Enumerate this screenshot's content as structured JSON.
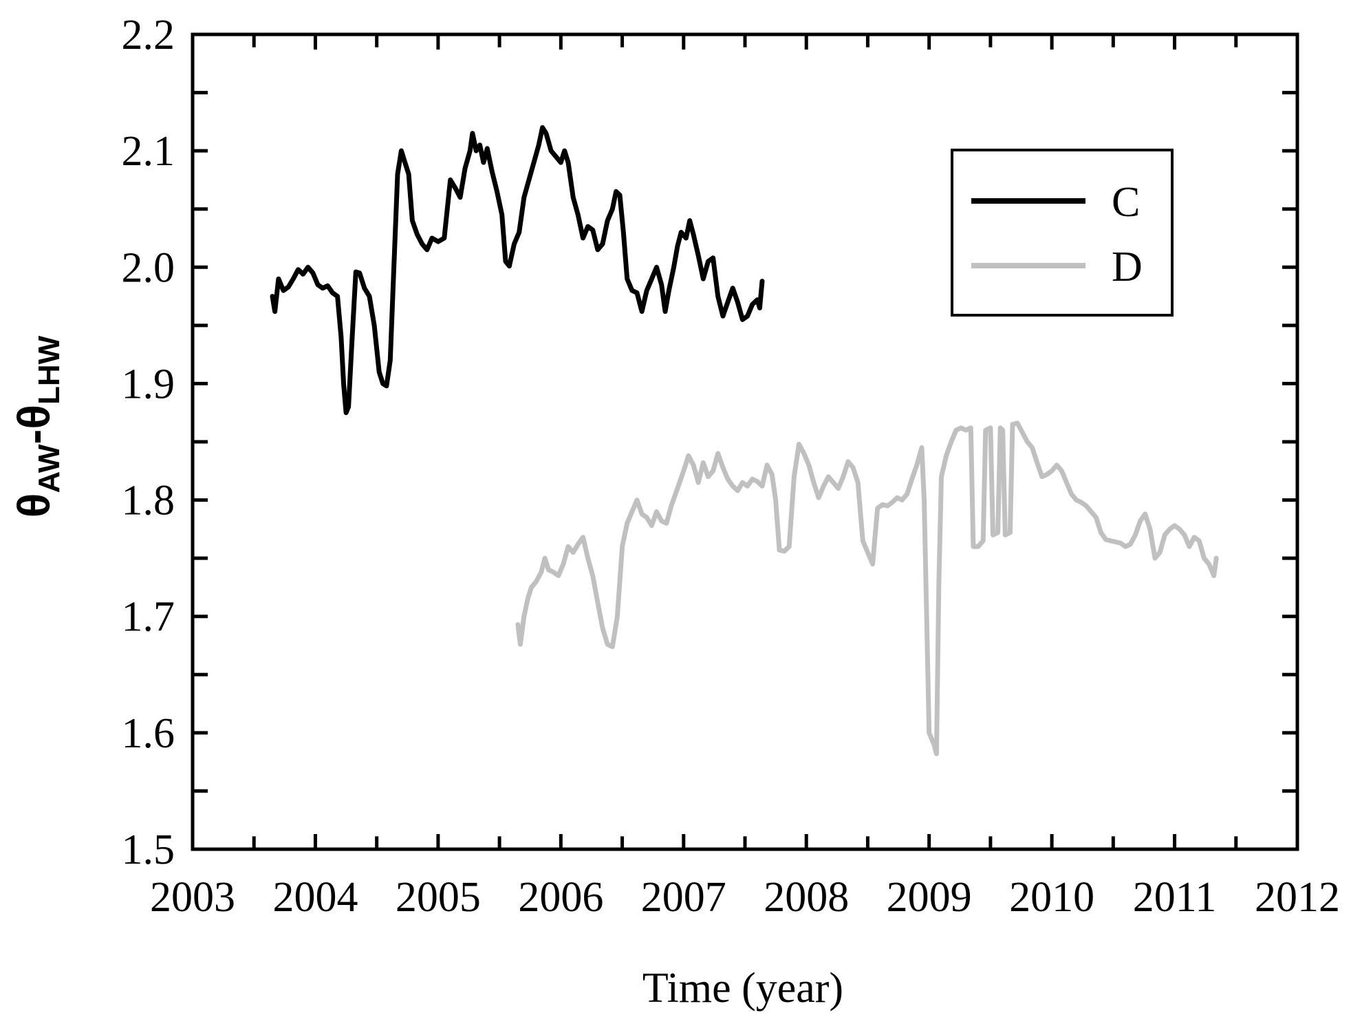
{
  "chart_data": {
    "type": "line",
    "xlabel": "Time (year)",
    "ylabel": {
      "main1": "θ",
      "sub1": "AW",
      "dash": "-",
      "main2": "θ",
      "sub2": "LHW"
    },
    "xlim": [
      2003,
      2012
    ],
    "ylim": [
      1.5,
      2.2
    ],
    "x_ticks": [
      "2003",
      "2004",
      "2005",
      "2006",
      "2007",
      "2008",
      "2009",
      "2010",
      "2011",
      "2012"
    ],
    "y_ticks": [
      "1.5",
      "1.6",
      "1.7",
      "1.8",
      "1.9",
      "2.0",
      "2.1",
      "2.2"
    ],
    "legend_position": "top-right",
    "grid": false,
    "series": [
      {
        "name": "C",
        "color": "#000000",
        "points": [
          [
            2003.65,
            1.975
          ],
          [
            2003.67,
            1.962
          ],
          [
            2003.7,
            1.99
          ],
          [
            2003.74,
            1.98
          ],
          [
            2003.78,
            1.983
          ],
          [
            2003.82,
            1.99
          ],
          [
            2003.86,
            1.998
          ],
          [
            2003.9,
            1.994
          ],
          [
            2003.94,
            2.0
          ],
          [
            2003.98,
            1.995
          ],
          [
            2004.02,
            1.985
          ],
          [
            2004.06,
            1.982
          ],
          [
            2004.1,
            1.984
          ],
          [
            2004.14,
            1.978
          ],
          [
            2004.18,
            1.975
          ],
          [
            2004.21,
            1.94
          ],
          [
            2004.23,
            1.9
          ],
          [
            2004.25,
            1.875
          ],
          [
            2004.27,
            1.88
          ],
          [
            2004.3,
            1.94
          ],
          [
            2004.33,
            1.996
          ],
          [
            2004.36,
            1.995
          ],
          [
            2004.4,
            1.982
          ],
          [
            2004.44,
            1.975
          ],
          [
            2004.48,
            1.95
          ],
          [
            2004.52,
            1.91
          ],
          [
            2004.55,
            1.9
          ],
          [
            2004.58,
            1.898
          ],
          [
            2004.61,
            1.92
          ],
          [
            2004.64,
            2.0
          ],
          [
            2004.67,
            2.08
          ],
          [
            2004.7,
            2.1
          ],
          [
            2004.73,
            2.09
          ],
          [
            2004.76,
            2.08
          ],
          [
            2004.79,
            2.04
          ],
          [
            2004.83,
            2.028
          ],
          [
            2004.87,
            2.02
          ],
          [
            2004.91,
            2.015
          ],
          [
            2004.95,
            2.025
          ],
          [
            2005.0,
            2.022
          ],
          [
            2005.05,
            2.025
          ],
          [
            2005.1,
            2.075
          ],
          [
            2005.14,
            2.068
          ],
          [
            2005.18,
            2.06
          ],
          [
            2005.22,
            2.085
          ],
          [
            2005.26,
            2.1
          ],
          [
            2005.28,
            2.115
          ],
          [
            2005.31,
            2.1
          ],
          [
            2005.34,
            2.105
          ],
          [
            2005.37,
            2.09
          ],
          [
            2005.4,
            2.102
          ],
          [
            2005.44,
            2.082
          ],
          [
            2005.48,
            2.065
          ],
          [
            2005.52,
            2.045
          ],
          [
            2005.55,
            2.005
          ],
          [
            2005.58,
            2.001
          ],
          [
            2005.62,
            2.02
          ],
          [
            2005.66,
            2.03
          ],
          [
            2005.7,
            2.06
          ],
          [
            2005.74,
            2.075
          ],
          [
            2005.78,
            2.09
          ],
          [
            2005.82,
            2.105
          ],
          [
            2005.85,
            2.12
          ],
          [
            2005.88,
            2.115
          ],
          [
            2005.92,
            2.1
          ],
          [
            2005.96,
            2.095
          ],
          [
            2006.0,
            2.09
          ],
          [
            2006.03,
            2.1
          ],
          [
            2006.06,
            2.09
          ],
          [
            2006.1,
            2.06
          ],
          [
            2006.14,
            2.045
          ],
          [
            2006.18,
            2.025
          ],
          [
            2006.22,
            2.035
          ],
          [
            2006.26,
            2.032
          ],
          [
            2006.3,
            2.015
          ],
          [
            2006.34,
            2.02
          ],
          [
            2006.38,
            2.04
          ],
          [
            2006.42,
            2.05
          ],
          [
            2006.45,
            2.065
          ],
          [
            2006.48,
            2.062
          ],
          [
            2006.51,
            2.03
          ],
          [
            2006.54,
            1.99
          ],
          [
            2006.58,
            1.98
          ],
          [
            2006.62,
            1.978
          ],
          [
            2006.66,
            1.962
          ],
          [
            2006.7,
            1.98
          ],
          [
            2006.74,
            1.99
          ],
          [
            2006.78,
            2.0
          ],
          [
            2006.82,
            1.985
          ],
          [
            2006.85,
            1.962
          ],
          [
            2006.88,
            1.98
          ],
          [
            2006.92,
            2.0
          ],
          [
            2006.95,
            2.018
          ],
          [
            2006.98,
            2.03
          ],
          [
            2007.02,
            2.025
          ],
          [
            2007.05,
            2.04
          ],
          [
            2007.08,
            2.028
          ],
          [
            2007.12,
            2.01
          ],
          [
            2007.16,
            1.99
          ],
          [
            2007.2,
            2.005
          ],
          [
            2007.24,
            2.008
          ],
          [
            2007.28,
            1.975
          ],
          [
            2007.32,
            1.958
          ],
          [
            2007.36,
            1.97
          ],
          [
            2007.4,
            1.982
          ],
          [
            2007.44,
            1.97
          ],
          [
            2007.48,
            1.955
          ],
          [
            2007.52,
            1.958
          ],
          [
            2007.56,
            1.968
          ],
          [
            2007.6,
            1.972
          ],
          [
            2007.62,
            1.965
          ],
          [
            2007.64,
            1.988
          ]
        ]
      },
      {
        "name": "D",
        "color": "#c0c0c0",
        "points": [
          [
            2005.65,
            1.693
          ],
          [
            2005.67,
            1.676
          ],
          [
            2005.7,
            1.7
          ],
          [
            2005.73,
            1.715
          ],
          [
            2005.76,
            1.725
          ],
          [
            2005.8,
            1.73
          ],
          [
            2005.84,
            1.738
          ],
          [
            2005.87,
            1.75
          ],
          [
            2005.9,
            1.74
          ],
          [
            2005.94,
            1.738
          ],
          [
            2005.98,
            1.735
          ],
          [
            2006.02,
            1.745
          ],
          [
            2006.06,
            1.76
          ],
          [
            2006.1,
            1.755
          ],
          [
            2006.14,
            1.762
          ],
          [
            2006.18,
            1.768
          ],
          [
            2006.22,
            1.75
          ],
          [
            2006.26,
            1.735
          ],
          [
            2006.3,
            1.712
          ],
          [
            2006.34,
            1.69
          ],
          [
            2006.38,
            1.676
          ],
          [
            2006.42,
            1.674
          ],
          [
            2006.46,
            1.7
          ],
          [
            2006.5,
            1.76
          ],
          [
            2006.54,
            1.78
          ],
          [
            2006.58,
            1.79
          ],
          [
            2006.62,
            1.8
          ],
          [
            2006.66,
            1.788
          ],
          [
            2006.7,
            1.785
          ],
          [
            2006.74,
            1.778
          ],
          [
            2006.78,
            1.79
          ],
          [
            2006.82,
            1.782
          ],
          [
            2006.86,
            1.78
          ],
          [
            2006.9,
            1.795
          ],
          [
            2006.95,
            1.81
          ],
          [
            2007.0,
            1.825
          ],
          [
            2007.04,
            1.838
          ],
          [
            2007.08,
            1.83
          ],
          [
            2007.12,
            1.815
          ],
          [
            2007.16,
            1.832
          ],
          [
            2007.2,
            1.82
          ],
          [
            2007.24,
            1.825
          ],
          [
            2007.28,
            1.84
          ],
          [
            2007.32,
            1.828
          ],
          [
            2007.36,
            1.818
          ],
          [
            2007.4,
            1.812
          ],
          [
            2007.44,
            1.808
          ],
          [
            2007.48,
            1.815
          ],
          [
            2007.52,
            1.812
          ],
          [
            2007.56,
            1.818
          ],
          [
            2007.6,
            1.816
          ],
          [
            2007.64,
            1.812
          ],
          [
            2007.68,
            1.83
          ],
          [
            2007.72,
            1.822
          ],
          [
            2007.75,
            1.8
          ],
          [
            2007.78,
            1.757
          ],
          [
            2007.82,
            1.756
          ],
          [
            2007.86,
            1.76
          ],
          [
            2007.9,
            1.82
          ],
          [
            2007.94,
            1.848
          ],
          [
            2007.98,
            1.84
          ],
          [
            2008.02,
            1.83
          ],
          [
            2008.06,
            1.815
          ],
          [
            2008.1,
            1.802
          ],
          [
            2008.14,
            1.812
          ],
          [
            2008.18,
            1.82
          ],
          [
            2008.22,
            1.815
          ],
          [
            2008.26,
            1.81
          ],
          [
            2008.3,
            1.82
          ],
          [
            2008.34,
            1.833
          ],
          [
            2008.38,
            1.828
          ],
          [
            2008.42,
            1.815
          ],
          [
            2008.46,
            1.765
          ],
          [
            2008.5,
            1.755
          ],
          [
            2008.54,
            1.745
          ],
          [
            2008.58,
            1.793
          ],
          [
            2008.62,
            1.796
          ],
          [
            2008.66,
            1.795
          ],
          [
            2008.7,
            1.798
          ],
          [
            2008.74,
            1.802
          ],
          [
            2008.78,
            1.8
          ],
          [
            2008.82,
            1.805
          ],
          [
            2008.86,
            1.818
          ],
          [
            2008.9,
            1.83
          ],
          [
            2008.94,
            1.845
          ],
          [
            2008.96,
            1.8
          ],
          [
            2008.98,
            1.7
          ],
          [
            2009.0,
            1.6
          ],
          [
            2009.02,
            1.595
          ],
          [
            2009.04,
            1.59
          ],
          [
            2009.06,
            1.582
          ],
          [
            2009.08,
            1.73
          ],
          [
            2009.1,
            1.82
          ],
          [
            2009.14,
            1.838
          ],
          [
            2009.18,
            1.85
          ],
          [
            2009.22,
            1.86
          ],
          [
            2009.26,
            1.862
          ],
          [
            2009.3,
            1.86
          ],
          [
            2009.34,
            1.862
          ],
          [
            2009.36,
            1.76
          ],
          [
            2009.4,
            1.76
          ],
          [
            2009.44,
            1.765
          ],
          [
            2009.46,
            1.86
          ],
          [
            2009.5,
            1.862
          ],
          [
            2009.52,
            1.77
          ],
          [
            2009.56,
            1.772
          ],
          [
            2009.58,
            1.862
          ],
          [
            2009.6,
            1.86
          ],
          [
            2009.62,
            1.77
          ],
          [
            2009.66,
            1.772
          ],
          [
            2009.68,
            1.865
          ],
          [
            2009.72,
            1.866
          ],
          [
            2009.76,
            1.858
          ],
          [
            2009.8,
            1.85
          ],
          [
            2009.84,
            1.845
          ],
          [
            2009.88,
            1.832
          ],
          [
            2009.92,
            1.82
          ],
          [
            2009.96,
            1.822
          ],
          [
            2010.0,
            1.825
          ],
          [
            2010.04,
            1.83
          ],
          [
            2010.08,
            1.825
          ],
          [
            2010.12,
            1.815
          ],
          [
            2010.16,
            1.805
          ],
          [
            2010.2,
            1.8
          ],
          [
            2010.24,
            1.798
          ],
          [
            2010.28,
            1.795
          ],
          [
            2010.32,
            1.79
          ],
          [
            2010.36,
            1.785
          ],
          [
            2010.4,
            1.772
          ],
          [
            2010.44,
            1.766
          ],
          [
            2010.48,
            1.765
          ],
          [
            2010.52,
            1.764
          ],
          [
            2010.56,
            1.763
          ],
          [
            2010.6,
            1.76
          ],
          [
            2010.64,
            1.762
          ],
          [
            2010.68,
            1.77
          ],
          [
            2010.72,
            1.782
          ],
          [
            2010.76,
            1.788
          ],
          [
            2010.8,
            1.775
          ],
          [
            2010.84,
            1.75
          ],
          [
            2010.88,
            1.755
          ],
          [
            2010.92,
            1.77
          ],
          [
            2010.96,
            1.775
          ],
          [
            2011.0,
            1.778
          ],
          [
            2011.04,
            1.775
          ],
          [
            2011.08,
            1.77
          ],
          [
            2011.12,
            1.76
          ],
          [
            2011.16,
            1.768
          ],
          [
            2011.2,
            1.765
          ],
          [
            2011.24,
            1.75
          ],
          [
            2011.28,
            1.745
          ],
          [
            2011.32,
            1.735
          ],
          [
            2011.34,
            1.75
          ]
        ]
      }
    ]
  }
}
